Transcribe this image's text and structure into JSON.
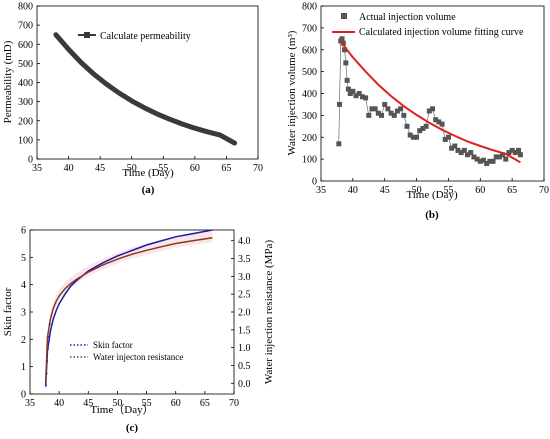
{
  "chart_data": [
    {
      "panel_label": "(a)",
      "type": "line",
      "xlabel": "Time (Day)",
      "ylabel": "Permeability (mD)",
      "xlim": [
        35,
        70
      ],
      "ylim": [
        0,
        800
      ],
      "xticks": [
        35,
        40,
        45,
        50,
        55,
        60,
        65,
        70
      ],
      "yticks": [
        0,
        100,
        200,
        300,
        400,
        500,
        600,
        700,
        800
      ],
      "legend_position": "top-left",
      "series": [
        {
          "name": "Calculate permeability",
          "color": "#3a3a3a",
          "marker": "square",
          "x": [
            38,
            40,
            42,
            44,
            46,
            48,
            50,
            52,
            54,
            56,
            58,
            60,
            62,
            64,
            66.3
          ],
          "y": [
            650,
            573,
            504,
            444,
            391,
            345,
            304,
            268,
            236,
            208,
            183,
            161,
            142,
            125,
            83
          ]
        }
      ]
    },
    {
      "panel_label": "(b)",
      "type": "scatter",
      "xlabel": "Time (Day)",
      "ylabel": "Water injection volume (m³)",
      "xlim": [
        35,
        70
      ],
      "ylim": [
        0,
        800
      ],
      "xticks": [
        35,
        40,
        45,
        50,
        55,
        60,
        65,
        70
      ],
      "yticks": [
        0,
        100,
        200,
        300,
        400,
        500,
        600,
        700,
        800
      ],
      "legend_position": "top-left",
      "series": [
        {
          "name": "Actual injection volume",
          "color": "#555555",
          "marker": "square",
          "x": [
            37.8,
            37.9,
            38.1,
            38.3,
            38.5,
            38.7,
            38.9,
            39.1,
            39.3,
            39.6,
            40.0,
            40.5,
            41.0,
            41.5,
            42.0,
            42.5,
            43.0,
            43.5,
            44.0,
            44.5,
            45.0,
            45.5,
            46.0,
            46.5,
            47.0,
            47.5,
            48.0,
            48.5,
            49.0,
            49.5,
            50.0,
            50.5,
            51.0,
            51.5,
            52.0,
            52.5,
            53.0,
            53.5,
            54.0,
            54.5,
            55.0,
            55.5,
            56.0,
            56.5,
            57.0,
            57.5,
            58.0,
            58.5,
            59.0,
            59.5,
            60.0,
            60.5,
            61.0,
            61.5,
            62.0,
            62.5,
            63.0,
            63.5,
            64.0,
            64.5,
            65.0,
            65.5,
            66.0,
            66.3
          ],
          "y": [
            170,
            350,
            640,
            650,
            630,
            600,
            540,
            460,
            420,
            400,
            410,
            390,
            400,
            385,
            380,
            300,
            330,
            330,
            310,
            300,
            350,
            330,
            310,
            300,
            320,
            330,
            300,
            250,
            210,
            200,
            200,
            230,
            240,
            250,
            320,
            330,
            280,
            270,
            260,
            190,
            200,
            150,
            160,
            140,
            130,
            140,
            120,
            130,
            110,
            100,
            90,
            95,
            80,
            90,
            90,
            110,
            110,
            120,
            100,
            130,
            140,
            130,
            140,
            120
          ]
        },
        {
          "name": "Calculated injection volume fitting curve",
          "color": "#e02020",
          "marker": "none",
          "x": [
            38,
            40,
            42,
            44,
            46,
            48,
            50,
            52,
            54,
            56,
            58,
            60,
            62,
            64,
            66.3
          ],
          "y": [
            640,
            565,
            500,
            440,
            388,
            342,
            302,
            266,
            234,
            206,
            181,
            160,
            141,
            124,
            85
          ]
        }
      ]
    },
    {
      "panel_label": "(c)",
      "type": "line",
      "xlabel": "Time（Day）",
      "ylabel": "Skin factor",
      "y2label": "Water injection resistance (MPa)",
      "xlim": [
        35,
        70
      ],
      "ylim": [
        0,
        6
      ],
      "y2lim": [
        -0.3,
        4.3
      ],
      "xticks": [
        35,
        40,
        45,
        50,
        55,
        60,
        65,
        70
      ],
      "yticks": [
        0,
        1,
        2,
        3,
        4,
        5,
        6
      ],
      "y2ticks": [
        "0.0",
        "0.5",
        "1.0",
        "1.5",
        "2.0",
        "2.5",
        "3.0",
        "3.5",
        "4.0"
      ],
      "legend_position": "bottom-center",
      "series": [
        {
          "name": "Skin factor",
          "color": "#1a1aa8",
          "axis": "left",
          "x": [
            37.7,
            38,
            38.5,
            39,
            39.5,
            40,
            41,
            42,
            43,
            45,
            47.5,
            50,
            52.5,
            55,
            57.5,
            60,
            62.5,
            66.3
          ],
          "y": [
            0.3,
            1.6,
            2.3,
            2.75,
            3.05,
            3.3,
            3.65,
            3.95,
            4.15,
            4.5,
            4.8,
            5.05,
            5.25,
            5.45,
            5.6,
            5.75,
            5.85,
            6.0
          ]
        },
        {
          "name": "Water injecton resistance",
          "color": "#8b3a1a",
          "axis": "right",
          "x": [
            37.7,
            38,
            38.5,
            39,
            39.5,
            40,
            41,
            42,
            43,
            45,
            47.5,
            50,
            52.5,
            55,
            57.5,
            60,
            62.5,
            66.3
          ],
          "y": [
            0.05,
            1.3,
            1.8,
            2.1,
            2.3,
            2.45,
            2.65,
            2.8,
            2.92,
            3.12,
            3.32,
            3.48,
            3.62,
            3.73,
            3.83,
            3.92,
            3.99,
            4.08
          ]
        }
      ]
    }
  ]
}
